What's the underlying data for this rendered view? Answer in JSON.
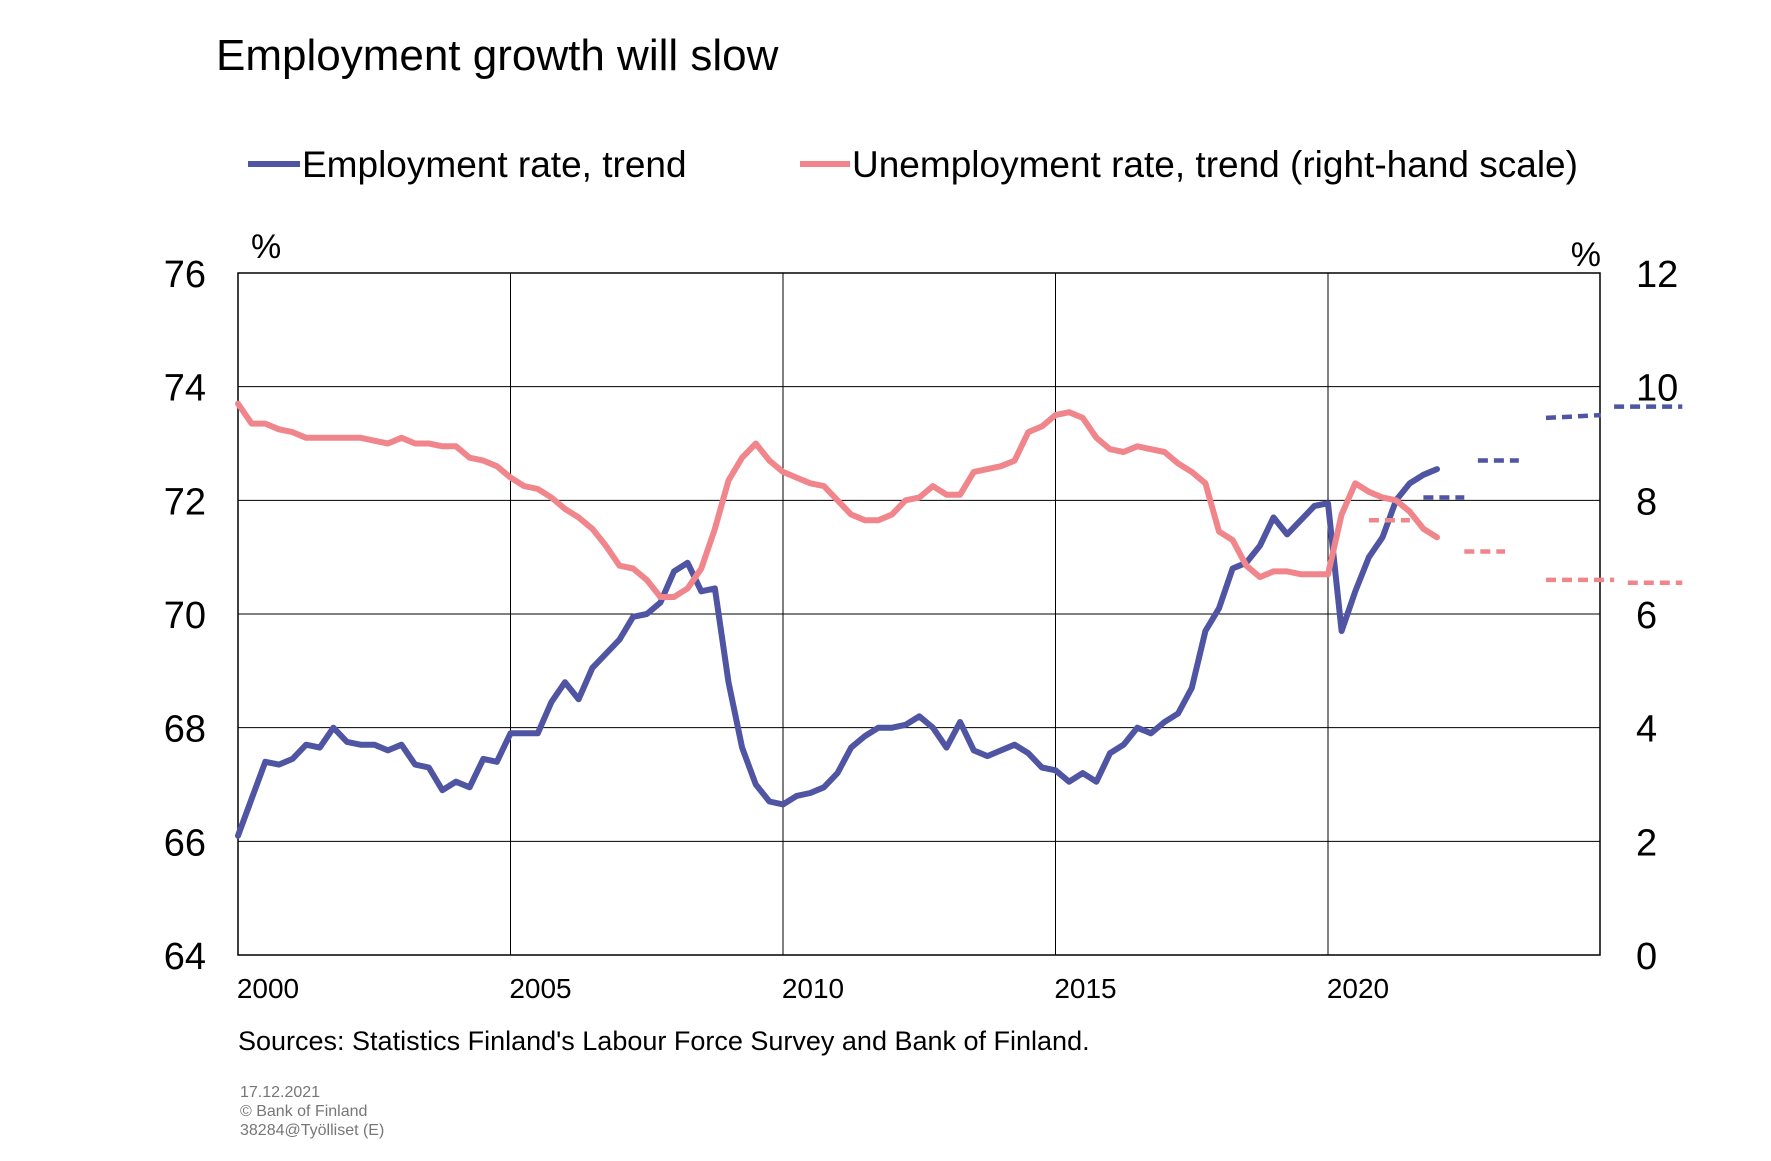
{
  "chart_data": {
    "type": "line",
    "title": "Employment growth will slow",
    "xlabel": "",
    "left_axis_unit": "%",
    "right_axis_unit": "%",
    "ylim_left": [
      64,
      76
    ],
    "ylim_right": [
      0,
      12
    ],
    "yticks_left": [
      "64",
      "66",
      "68",
      "70",
      "72",
      "74",
      "76"
    ],
    "yticks_right": [
      "0",
      "2",
      "4",
      "6",
      "8",
      "10",
      "12"
    ],
    "xlim": [
      2000,
      2025
    ],
    "xticks": [
      "2000",
      "2005",
      "2010",
      "2015",
      "2020"
    ],
    "grid": true,
    "legend_position": "top",
    "colors": {
      "employment": "#4f54a3",
      "unemployment": "#f0868b"
    },
    "series": [
      {
        "name": "Employment rate, trend",
        "axis": "left",
        "x": [
          2000.0,
          2000.5,
          2000.75,
          2001.0,
          2001.25,
          2001.5,
          2001.75,
          2002.0,
          2002.25,
          2002.5,
          2002.75,
          2003.0,
          2003.25,
          2003.5,
          2003.75,
          2004.0,
          2004.25,
          2004.5,
          2004.75,
          2005.0,
          2005.25,
          2005.5,
          2005.75,
          2006.0,
          2006.25,
          2006.5,
          2006.75,
          2007.0,
          2007.25,
          2007.5,
          2007.75,
          2008.0,
          2008.25,
          2008.5,
          2008.75,
          2009.0,
          2009.25,
          2009.5,
          2009.75,
          2010.0,
          2010.25,
          2010.5,
          2010.75,
          2011.0,
          2011.25,
          2011.5,
          2011.75,
          2012.0,
          2012.25,
          2012.5,
          2012.75,
          2013.0,
          2013.25,
          2013.5,
          2013.75,
          2014.0,
          2014.25,
          2014.5,
          2014.75,
          2015.0,
          2015.25,
          2015.5,
          2015.75,
          2016.0,
          2016.25,
          2016.5,
          2016.75,
          2017.0,
          2017.25,
          2017.5,
          2017.75,
          2018.0,
          2018.25,
          2018.5,
          2018.75,
          2019.0,
          2019.25,
          2019.5,
          2019.75,
          2020.0,
          2020.25,
          2020.5,
          2020.75,
          2021.0,
          2021.25,
          2021.5,
          2021.75,
          2022.0
        ],
        "values": [
          66.1,
          67.4,
          67.35,
          67.45,
          67.7,
          67.65,
          68.0,
          67.75,
          67.7,
          67.7,
          67.6,
          67.7,
          67.35,
          67.3,
          66.9,
          67.05,
          66.95,
          67.45,
          67.4,
          67.9,
          67.9,
          67.9,
          68.45,
          68.8,
          68.5,
          69.05,
          69.3,
          69.55,
          69.95,
          70.0,
          70.2,
          70.75,
          70.9,
          70.4,
          70.45,
          68.8,
          67.65,
          67.0,
          66.7,
          66.65,
          66.8,
          66.85,
          66.95,
          67.2,
          67.65,
          67.85,
          68.0,
          68.0,
          68.05,
          68.2,
          68.0,
          67.65,
          68.1,
          67.6,
          67.5,
          67.6,
          67.7,
          67.55,
          67.3,
          67.25,
          67.05,
          67.2,
          67.05,
          67.55,
          67.7,
          68.0,
          67.9,
          68.1,
          68.25,
          68.7,
          69.7,
          70.1,
          70.8,
          70.9,
          71.2,
          71.7,
          71.4,
          71.65,
          71.9,
          71.95,
          69.7,
          70.4,
          71.0,
          71.35,
          72.0,
          72.3,
          72.45,
          72.55
        ],
        "forecast": [
          {
            "x": [
              2021.75,
              2022.5
            ],
            "values": [
              72.05,
              72.05
            ]
          },
          {
            "x": [
              2022.75,
              2023.5
            ],
            "values": [
              72.7,
              72.7
            ]
          },
          {
            "x": [
              2024.0,
              2025.0
            ],
            "values": [
              73.45,
              73.5
            ]
          },
          {
            "x": [
              2025.25,
              2026.5
            ],
            "values": [
              73.65,
              73.65
            ]
          }
        ]
      },
      {
        "name": "Unemployment rate, trend (right-hand scale)",
        "axis": "right",
        "x": [
          2000.0,
          2000.25,
          2000.5,
          2000.75,
          2001.0,
          2001.25,
          2001.5,
          2001.75,
          2002.0,
          2002.25,
          2002.5,
          2002.75,
          2003.0,
          2003.25,
          2003.5,
          2003.75,
          2004.0,
          2004.25,
          2004.5,
          2004.75,
          2005.0,
          2005.25,
          2005.5,
          2005.75,
          2006.0,
          2006.25,
          2006.5,
          2006.75,
          2007.0,
          2007.25,
          2007.5,
          2007.75,
          2008.0,
          2008.25,
          2008.5,
          2008.75,
          2009.0,
          2009.25,
          2009.5,
          2009.75,
          2010.0,
          2010.25,
          2010.5,
          2010.75,
          2011.0,
          2011.25,
          2011.5,
          2011.75,
          2012.0,
          2012.25,
          2012.5,
          2012.75,
          2013.0,
          2013.25,
          2013.5,
          2013.75,
          2014.0,
          2014.25,
          2014.5,
          2014.75,
          2015.0,
          2015.25,
          2015.5,
          2015.75,
          2016.0,
          2016.25,
          2016.5,
          2016.75,
          2017.0,
          2017.25,
          2017.5,
          2017.75,
          2018.0,
          2018.25,
          2018.5,
          2018.75,
          2019.0,
          2019.25,
          2019.5,
          2019.75,
          2020.0,
          2020.25,
          2020.5,
          2020.75,
          2021.0,
          2021.25,
          2021.5,
          2021.75,
          2022.0
        ],
        "values": [
          9.7,
          9.35,
          9.35,
          9.25,
          9.2,
          9.1,
          9.1,
          9.1,
          9.1,
          9.1,
          9.05,
          9.0,
          9.1,
          9.0,
          9.0,
          8.95,
          8.95,
          8.75,
          8.7,
          8.6,
          8.4,
          8.25,
          8.2,
          8.05,
          7.85,
          7.7,
          7.5,
          7.2,
          6.85,
          6.8,
          6.6,
          6.3,
          6.3,
          6.45,
          6.8,
          7.5,
          8.35,
          8.75,
          9.0,
          8.7,
          8.5,
          8.4,
          8.3,
          8.25,
          8.0,
          7.75,
          7.65,
          7.65,
          7.75,
          8.0,
          8.05,
          8.25,
          8.1,
          8.1,
          8.5,
          8.55,
          8.6,
          8.7,
          9.2,
          9.3,
          9.5,
          9.55,
          9.45,
          9.1,
          8.9,
          8.85,
          8.95,
          8.9,
          8.85,
          8.65,
          8.5,
          8.3,
          7.45,
          7.3,
          6.85,
          6.65,
          6.75,
          6.75,
          6.7,
          6.7,
          6.7,
          7.75,
          8.3,
          8.15,
          8.05,
          8.0,
          7.8,
          7.5,
          7.35
        ],
        "forecast": [
          {
            "x": [
              2020.75,
              2021.5
            ],
            "values": [
              7.65,
              7.65
            ]
          },
          {
            "x": [
              2022.5,
              2023.25
            ],
            "values": [
              7.1,
              7.1
            ]
          },
          {
            "x": [
              2024.0,
              2025.25
            ],
            "values": [
              6.6,
              6.6
            ]
          },
          {
            "x": [
              2025.5,
              2026.5
            ],
            "values": [
              6.55,
              6.55
            ]
          }
        ]
      }
    ]
  },
  "sources": "Sources: Statistics Finland's Labour Force Survey and Bank of Finland.",
  "footer": {
    "date": "17.12.2021",
    "copyright": "© Bank of Finland",
    "code": "38284@Työlliset  (E)"
  }
}
